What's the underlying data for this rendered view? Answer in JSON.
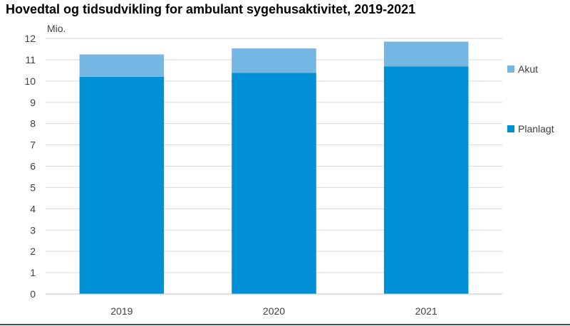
{
  "title": "Hovedtal og tidsudvikling for ambulant sygehusaktivitet, 2019-2021",
  "chart_data": {
    "type": "bar",
    "stacked": true,
    "title": "Hovedtal og tidsudvikling for ambulant sygehusaktivitet, 2019-2021",
    "ylabel": "Mio.",
    "xlabel": "",
    "categories": [
      "2019",
      "2020",
      "2021"
    ],
    "series": [
      {
        "name": "Planlagt",
        "values": [
          10.2,
          10.38,
          10.68
        ],
        "color": "#0090d6"
      },
      {
        "name": "Akut",
        "values": [
          1.05,
          1.15,
          1.17
        ],
        "color": "#75b7e4"
      }
    ],
    "ylim": [
      0,
      12
    ],
    "yticks": [
      0,
      1,
      2,
      3,
      4,
      5,
      6,
      7,
      8,
      9,
      10,
      11,
      12
    ],
    "grid": true,
    "legend": "right"
  }
}
